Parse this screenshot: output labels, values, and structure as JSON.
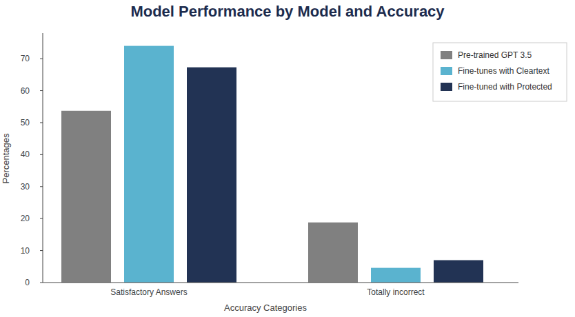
{
  "chart_data": {
    "type": "bar",
    "title": "Model Performance by Model and Accuracy",
    "x_label": "Accuracy Categories",
    "y_label": "Percentages",
    "categories": [
      "Satisfactory Answers",
      "Totally incorrect"
    ],
    "series": [
      {
        "name": "Pre-trained GPT 3.5",
        "color": "#808080",
        "values": [
          53.7,
          18.8
        ]
      },
      {
        "name": "Fine-tunes with Cleartext",
        "color": "#5ab3cf",
        "values": [
          74,
          4.6
        ]
      },
      {
        "name": "Fine-tuned with Protected",
        "color": "#223354",
        "values": [
          67.3,
          7
        ]
      }
    ],
    "ylim": [
      0,
      78
    ],
    "yticks": [
      0,
      10,
      20,
      30,
      40,
      50,
      60,
      70
    ],
    "grid": false,
    "legend": "upper-right"
  }
}
